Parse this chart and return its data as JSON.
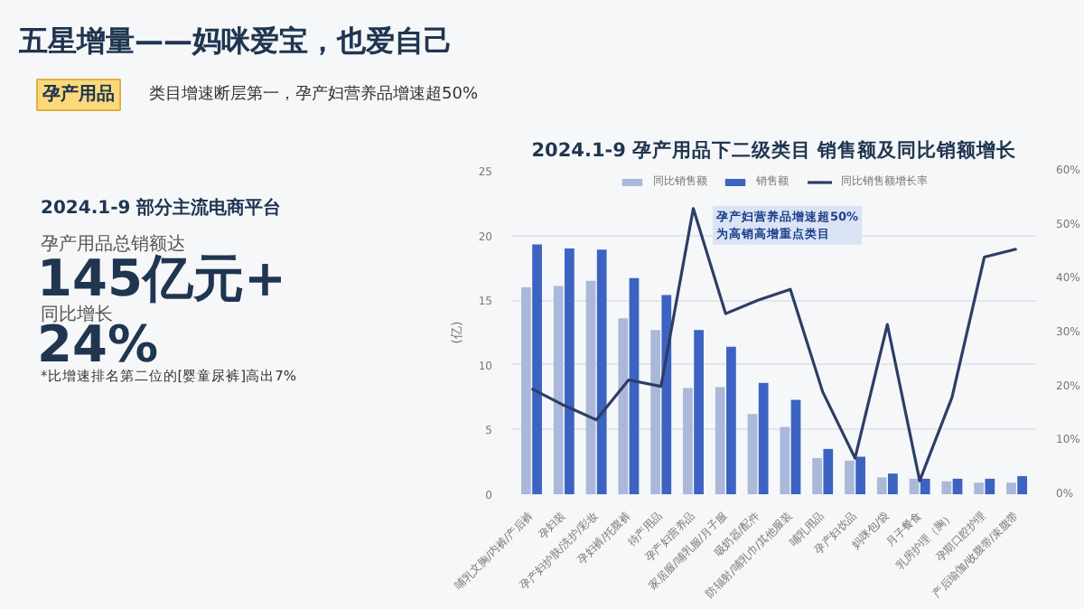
{
  "chart_data": {
    "type": "bar",
    "title": "2024.1-9 孕产用品下二级类目 销售额及同比销额增长",
    "ylabel": "(亿)",
    "categories": [
      "哺乳文胸/内裤/产后裤",
      "孕妇装",
      "孕产妇护肤/洗护/彩妆",
      "孕妇裤/托腹裤",
      "待产用品",
      "孕产妇营养品",
      "家居服/哺乳服/月子服",
      "吸奶器/配件",
      "防辐射/哺乳巾/其他服装",
      "哺乳用品",
      "孕产妇饮品",
      "妈咪包/袋",
      "月子餐食",
      "乳房护理（胸）",
      "孕期口腔护理",
      "产后瑜伽/收腹带/束腹带"
    ],
    "series": [
      {
        "name": "同比销售额",
        "color": "#aab8da",
        "values": [
          16,
          16.1,
          16.5,
          13.6,
          12.7,
          8.2,
          8.3,
          6.2,
          5.2,
          2.8,
          2.6,
          1.3,
          1.2,
          1.0,
          0.9,
          0.9
        ]
      },
      {
        "name": "销售额",
        "color": "#3c63c2",
        "values": [
          19.3,
          19,
          18.9,
          16.7,
          15.4,
          12.7,
          11.4,
          8.6,
          7.3,
          3.5,
          2.9,
          1.6,
          1.2,
          1.2,
          1.2,
          1.4
        ]
      },
      {
        "name": "同比销售额增长率",
        "type": "line",
        "axis": "y2",
        "color": "#2d3e66",
        "values": [
          19.6,
          16.5,
          13.8,
          21.2,
          20,
          53,
          33.5,
          36,
          38,
          19,
          6.7,
          31.5,
          2.5,
          18,
          44,
          45.5
        ]
      }
    ],
    "ylim": [
      0,
      25
    ],
    "yticks": [
      0,
      5,
      10,
      15,
      20,
      25
    ],
    "y2lim": [
      0,
      60
    ],
    "y2ticks": [
      {
        "value": 0,
        "label": "0%"
      },
      {
        "value": 10,
        "label": "10%"
      },
      {
        "value": 20,
        "label": "20%"
      },
      {
        "value": 30,
        "label": "30%"
      },
      {
        "value": 40,
        "label": "40%"
      },
      {
        "value": 50,
        "label": "50%"
      },
      {
        "value": 60,
        "label": "60%"
      }
    ],
    "grid": "y",
    "legend": "top",
    "marker": "none",
    "line_style": "solid",
    "annotations": [
      "五星增量——妈咪爱宝，也爱自己",
      "孕产用品",
      "类目增速断层第一，孕产妇营养品增速超50%",
      "2024.1-9 部分主流电商平台",
      "孕产用品总销额达",
      "145亿元+",
      "同比增长",
      "24%",
      "*比增速排名第二位的[婴童尿裤]高出7%",
      "孕产妇营养品增速超50%\n为高销高增重点类目"
    ]
  }
}
